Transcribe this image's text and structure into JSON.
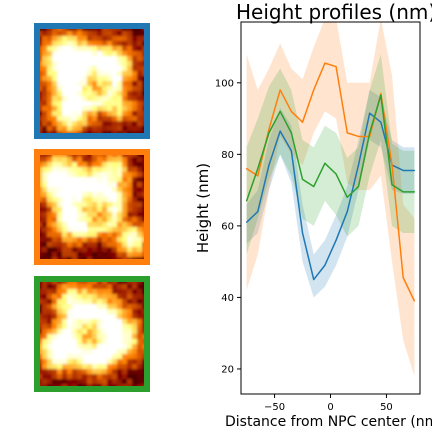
{
  "figure": {
    "thumbnail_frame_colors": [
      "#1f77b4",
      "#ff7f0e",
      "#2ca02c"
    ],
    "thumbnail_colormap": "afmhot"
  },
  "chart_data": {
    "type": "line",
    "title": "Height profiles (nm)",
    "xlabel": "Distance from NPC center (nm)",
    "ylabel": "Height (nm)",
    "xlim": [
      -80,
      80
    ],
    "ylim": [
      13,
      117
    ],
    "xticks": [
      -50,
      0,
      50
    ],
    "yticks": [
      20,
      40,
      60,
      80,
      100
    ],
    "grid": false,
    "legend": "none",
    "x": [
      -75,
      -65,
      -55,
      -45,
      -35,
      -25,
      -15,
      -5,
      5,
      15,
      25,
      35,
      45,
      55,
      65,
      75
    ],
    "series": [
      {
        "color": "#1f77b4",
        "values": [
          61,
          64,
          77,
          86.5,
          81,
          58,
          45,
          49,
          56,
          64,
          77,
          91.5,
          89,
          77,
          75.5,
          75.5
        ],
        "band_low": [
          55,
          58,
          70,
          80,
          72,
          50,
          40,
          43,
          49,
          57,
          70,
          84,
          82,
          70,
          69,
          69
        ],
        "band_high": [
          66,
          70,
          84,
          93,
          88,
          66,
          52,
          56,
          63,
          71,
          84,
          98,
          96,
          84,
          82,
          82
        ]
      },
      {
        "color": "#ff7f0e",
        "values": [
          76,
          74,
          87,
          98,
          92,
          89,
          98,
          105.5,
          104.5,
          86,
          85,
          85,
          97,
          77,
          45.5,
          39
        ],
        "band_low": [
          42,
          52,
          70,
          85,
          80,
          77,
          86,
          92,
          90,
          72,
          70,
          70,
          74,
          50,
          28,
          18
        ],
        "band_high": [
          108,
          98,
          104,
          111,
          104,
          101,
          110,
          118,
          118,
          100,
          100,
          100,
          118,
          102,
          66,
          62
        ]
      },
      {
        "color": "#2ca02c",
        "values": [
          67,
          76,
          86,
          92,
          86,
          73,
          71,
          77.5,
          74.5,
          68,
          71,
          86,
          96.5,
          71.5,
          69.5,
          69.5
        ],
        "band_low": [
          52,
          62,
          73,
          80,
          74,
          62,
          60,
          67,
          63,
          57,
          60,
          74,
          84,
          60,
          58,
          58
        ],
        "band_high": [
          82,
          90,
          99,
          104,
          98,
          84,
          82,
          88,
          86,
          79,
          82,
          98,
          108,
          83,
          81,
          81
        ]
      }
    ]
  }
}
